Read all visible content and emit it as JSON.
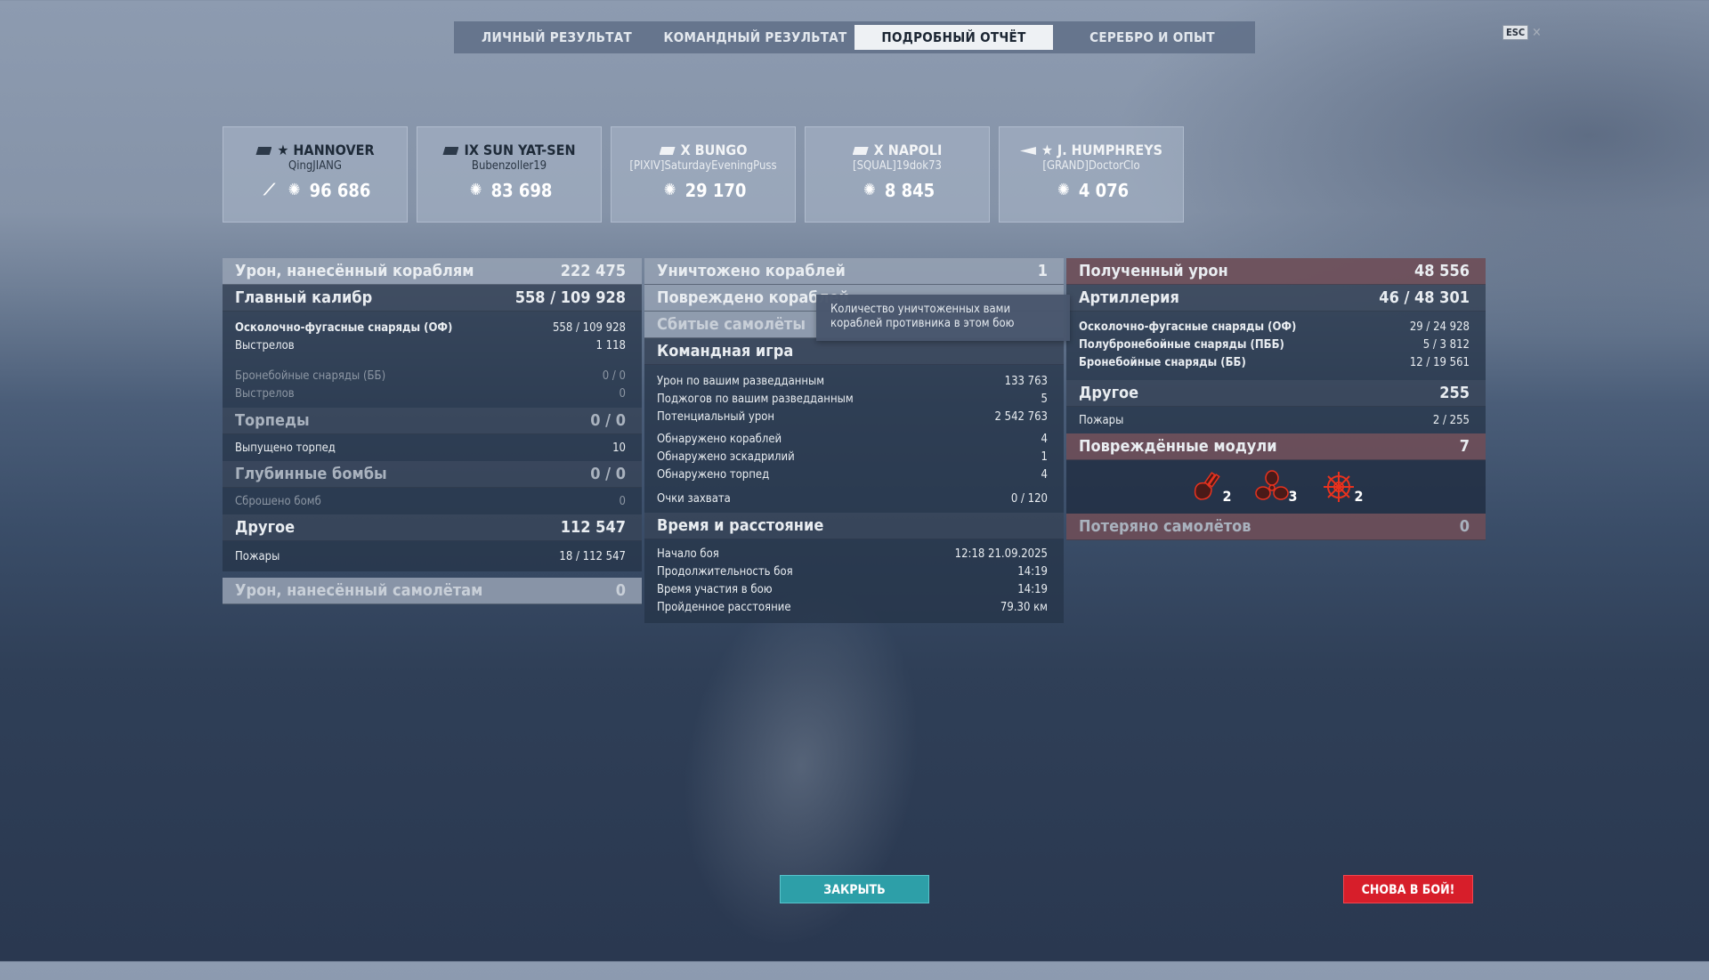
{
  "tabs": [
    "ЛИЧНЫЙ РЕЗУЛЬТАТ",
    "КОМАНДНЫЙ РЕЗУЛЬТАТ",
    "ПОДРОБНЫЙ ОТЧЁТ",
    "СЕРЕБРО И ОПЫТ"
  ],
  "active_tab": "ПОДРОБНЫЙ ОТЧЁТ",
  "esc": {
    "key": "ESC",
    "close": "✕"
  },
  "ships": [
    {
      "name": "★ HANNOVER",
      "player": "QingJIANG",
      "damage": "96 686",
      "sunk_icon": true
    },
    {
      "name": "IX SUN YAT-SEN",
      "player": "Bubenzoller19",
      "damage": "83 698"
    },
    {
      "name": "X BUNGO",
      "player": "[PIXIV]SaturdayEveningPuss",
      "damage": "29 170"
    },
    {
      "name": "X NAPOLI",
      "player": "[SQUAL]19dok73",
      "damage": "8 845"
    },
    {
      "name": "★ J. HUMPHREYS",
      "player": "[GRAND]DoctorClo",
      "damage": "4 076"
    }
  ],
  "left": {
    "ship_damage": {
      "label": "Урон, нанесённый кораблям",
      "value": "222 475"
    },
    "main_battery": {
      "label": "Главный калибр",
      "value": "558 / 109 928"
    },
    "he": {
      "label": "Осколочно-фугасные снаряды (ОФ)",
      "value": "558 / 109 928"
    },
    "he_shots": {
      "label": "Выстрелов",
      "value": "1 118"
    },
    "ap": {
      "label": "Бронебойные снаряды (ББ)",
      "value": "0 / 0"
    },
    "ap_shots": {
      "label": "Выстрелов",
      "value": "0"
    },
    "torpedoes": {
      "label": "Торпеды",
      "value": "0 / 0"
    },
    "torp_launched": {
      "label": "Выпущено торпед",
      "value": "10"
    },
    "depth": {
      "label": "Глубинные бомбы",
      "value": "0 / 0"
    },
    "depth_dropped": {
      "label": "Сброшено бомб",
      "value": "0"
    },
    "other": {
      "label": "Другое",
      "value": "112 547"
    },
    "fires": {
      "label": "Пожары",
      "value": "18 / 112 547"
    },
    "aircraft_damage": {
      "label": "Урон, нанесённый самолётам",
      "value": "0"
    }
  },
  "middle": {
    "destroyed": {
      "label": "Уничтожено кораблей",
      "value": "1"
    },
    "damaged": {
      "label": "Повреждено кораблей"
    },
    "planes": {
      "label": "Сбитые самолёты"
    },
    "team": {
      "label": "Командная игра"
    },
    "team_rows": [
      {
        "label": "Урон по вашим разведданным",
        "value": "133 763"
      },
      {
        "label": "Поджогов по вашим разведданным",
        "value": "5"
      },
      {
        "label": "Потенциальный урон",
        "value": "2 542 763"
      },
      {
        "label": "Обнаружено кораблей",
        "value": "4"
      },
      {
        "label": "Обнаружено эскадрилий",
        "value": "1"
      },
      {
        "label": "Обнаружено торпед",
        "value": "4"
      },
      {
        "label": "Очки захвата",
        "value": "0 / 120"
      }
    ],
    "time": {
      "label": "Время и расстояние"
    },
    "time_rows": [
      {
        "label": "Начало боя",
        "value": "12:18  21.09.2025"
      },
      {
        "label": "Продолжительность боя",
        "value": "14:19"
      },
      {
        "label": "Время участия в бою",
        "value": "14:19"
      },
      {
        "label": "Пройденное расстояние",
        "value": "79.30 км"
      }
    ]
  },
  "tooltip": "Количество уничтоженных вами кораблей противника в этом бою",
  "right": {
    "received": {
      "label": "Полученный урон",
      "value": "48 556"
    },
    "artillery": {
      "label": "Артиллерия",
      "value": "46 / 48 301"
    },
    "art_rows": [
      {
        "label": "Осколочно-фугасные снаряды (ОФ)",
        "value": "29 / 24 928"
      },
      {
        "label": "Полубронебойные снаряды (ПББ)",
        "value": "5 / 3 812"
      },
      {
        "label": "Бронебойные снаряды (ББ)",
        "value": "12 / 19 561"
      }
    ],
    "other": {
      "label": "Другое",
      "value": "255"
    },
    "fires": {
      "label": "Пожары",
      "value": "2 / 255"
    },
    "modules": {
      "label": "Повреждённые модули",
      "value": "7"
    },
    "module_items": [
      {
        "icon": "turret-icon",
        "count": "2"
      },
      {
        "icon": "propeller-icon",
        "count": "3"
      },
      {
        "icon": "steering-wheel-icon",
        "count": "2"
      }
    ],
    "lost_planes": {
      "label": "Потеряно самолётов",
      "value": "0"
    }
  },
  "buttons": {
    "close": "ЗАКРЫТЬ",
    "again": "СНОВА В БОЙ!"
  },
  "colors": {
    "close": "#2d9fa8",
    "again": "#d71e2a",
    "module_damage": "#e8321e"
  }
}
